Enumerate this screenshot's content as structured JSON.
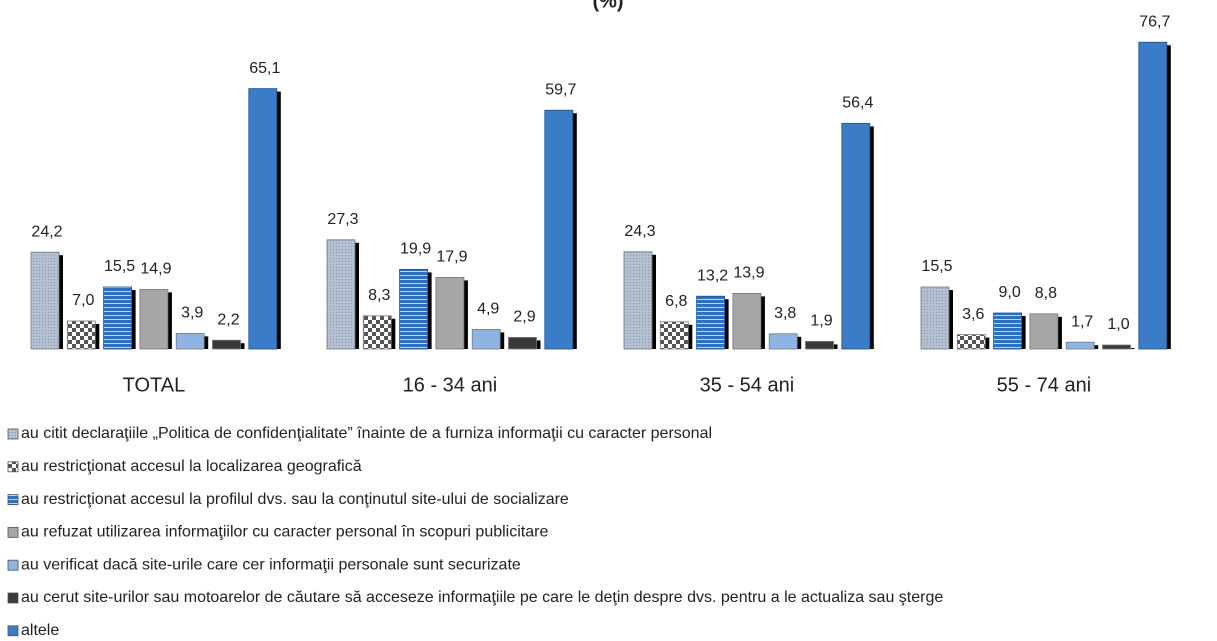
{
  "chart_data": {
    "type": "bar",
    "title": "(%)",
    "categories": [
      "TOTAL",
      "16 - 34 ani",
      "35 - 54 ani",
      "55 - 74 ani"
    ],
    "ylim": [
      0,
      80
    ],
    "series": [
      {
        "name": "au citit declaraţiile „Politica de confidenţialitate” înainte de a furniza informaţii cu caracter personal",
        "color": "#a9b7c9",
        "values": [
          24.2,
          27.3,
          24.3,
          15.5
        ],
        "value_labels": [
          "24,2",
          "27,3",
          "24,3",
          "15,5"
        ]
      },
      {
        "name": "au restricţionat accesul la localizarea geografică",
        "color": "#707070",
        "values": [
          7.0,
          8.3,
          6.8,
          3.6
        ],
        "value_labels": [
          "7,0",
          "8,3",
          "6,8",
          "3,6"
        ]
      },
      {
        "name": "au restricţionat accesul la profilul dvs. sau la conţinutul site-ului de socializare",
        "color": "#2e6fc0",
        "values": [
          15.5,
          19.9,
          13.2,
          9.0
        ],
        "value_labels": [
          "15,5",
          "19,9",
          "13,2",
          "9,0"
        ]
      },
      {
        "name": "au refuzat utilizarea informaţiilor cu caracter personal în scopuri publicitare",
        "color": "#a6a6a6",
        "values": [
          14.9,
          17.9,
          13.9,
          8.8
        ],
        "value_labels": [
          "14,9",
          "17,9",
          "13,9",
          "8,8"
        ]
      },
      {
        "name": "au verificat dacă site-urile care cer informaţii personale sunt securizate",
        "color": "#8eb4e3",
        "values": [
          3.9,
          4.9,
          3.8,
          1.7
        ],
        "value_labels": [
          "3,9",
          "4,9",
          "3,8",
          "1,7"
        ]
      },
      {
        "name": "au cerut site-urilor sau motoarelor de căutare să acceseze informaţiile pe care le deţin despre dvs. pentru a le actualiza sau şterge",
        "color": "#3a3a3a",
        "values": [
          2.2,
          2.9,
          1.9,
          1.0
        ],
        "value_labels": [
          "2,2",
          "2,9",
          "1,9",
          "1,0"
        ]
      },
      {
        "name": "altele",
        "color": "#3a7cc6",
        "values": [
          65.1,
          59.7,
          56.4,
          76.7
        ],
        "value_labels": [
          "65,1",
          "59,7",
          "56,4",
          "76,7"
        ]
      }
    ]
  }
}
